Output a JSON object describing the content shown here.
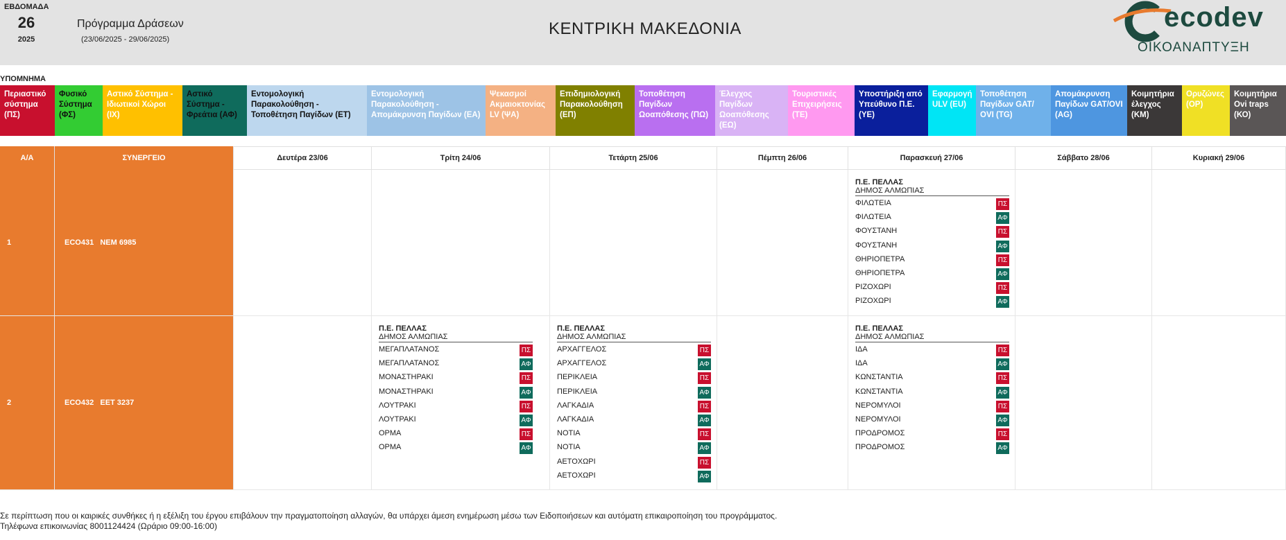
{
  "header": {
    "week_label": "ΕΒΔΟΜΑΔΑ",
    "week_number": "26",
    "year": "2025",
    "program_title": "Πρόγραμμα Δράσεων",
    "program_range": "(23/06/2025 - 29/06/2025)",
    "region": "ΚΕΝΤΡΙΚΗ ΜΑΚΕΔΟΝΙΑ",
    "logo_text": "ecodev",
    "logo_subtitle": "ΟΙΚΟΑΝΑΠΤΥΞΗ",
    "logo_color": "#1d4a3f",
    "logo_accent": "#e87b2e"
  },
  "legend": {
    "title": "ΥΠΟΜΝΗΜΑ",
    "items": [
      {
        "label": "Περιαστικό σύστημα (ΠΣ)",
        "bg": "#c8102e",
        "fg": "#ffffff"
      },
      {
        "label": "Φυσικό Σύστημα (ΦΣ)",
        "bg": "#33cc33",
        "fg": "#111111"
      },
      {
        "label": "Αστικό Σύστημα - Ιδιωτικοί Χώροι (ΙΧ)",
        "bg": "#ffc000",
        "fg": "#ffffff"
      },
      {
        "label": "Αστικό Σύστημα - Φρεάτια (ΑΦ)",
        "bg": "#0f6b5c",
        "fg": "#111111"
      },
      {
        "label": "Εντομολογική Παρακολούθηση - Τοποθέτηση Παγίδων (ΕΤ)",
        "bg": "#bdd7ee",
        "fg": "#111111"
      },
      {
        "label": "Εντομολογική Παρακολούθηση - Απομάκρυνση Παγίδων (ΕΑ)",
        "bg": "#9dc3e6",
        "fg": "#ffffff"
      },
      {
        "label": "Ψεκασμοί Ακμαιοκτονίας LV (ΨΑ)",
        "bg": "#f4b183",
        "fg": "#ffffff"
      },
      {
        "label": "Επιδημιολογική Παρακολούθηση (ΕΠ)",
        "bg": "#808000",
        "fg": "#ffffff"
      },
      {
        "label": "Τοποθέτηση Παγίδων Ωοαπόθεσης (ΠΩ)",
        "bg": "#b96ff0",
        "fg": "#ffffff"
      },
      {
        "label": "Έλεγχος Παγίδων Ωοαπόθεσης (ΕΩ)",
        "bg": "#d9b3f5",
        "fg": "#ffffff"
      },
      {
        "label": "Τουριστικές Επιχειρήσεις (ΤΕ)",
        "bg": "#ff99f0",
        "fg": "#ffffff"
      },
      {
        "label": "Υποστήριξη από Υπεύθυνο Π.Ε. (ΥΕ)",
        "bg": "#0a1f9c",
        "fg": "#ffffff"
      },
      {
        "label": "Εφαρμογή ULV (EU)",
        "bg": "#00e5f5",
        "fg": "#ffffff"
      },
      {
        "label": "Τοποθέτηση Παγίδων GAT/ OVI (TG)",
        "bg": "#6fb1ea",
        "fg": "#ffffff"
      },
      {
        "label": "Απομάκρυνση Παγίδων GAT/OVI (AG)",
        "bg": "#4e96e0",
        "fg": "#ffffff"
      },
      {
        "label": "Κοιμητήρια έλεγχος (ΚΜ)",
        "bg": "#3b3838",
        "fg": "#ffffff"
      },
      {
        "label": "Ορυζώνες (ΟΡ)",
        "bg": "#f0e025",
        "fg": "#ffffff"
      },
      {
        "label": "Κοιμητήρια Ovi traps (ΚΟ)",
        "bg": "#5a5656",
        "fg": "#ffffff"
      }
    ]
  },
  "table": {
    "col_aa": "Α/Α",
    "col_team": "ΣΥΝΕΡΓΕΙΟ",
    "days": [
      "Δευτέρα 23/06",
      "Τρίτη 24/06",
      "Τετάρτη 25/06",
      "Πέμπτη 26/06",
      "Παρασκευή 27/06",
      "Σάββατο 28/06",
      "Κυριακή 29/06"
    ],
    "rows": [
      {
        "aa": "1",
        "team": "ECO431   ΝΕΜ 6985",
        "cells": [
          null,
          null,
          null,
          null,
          {
            "unit": "Π.Ε. ΠΕΛΛΑΣ",
            "municipality": "ΔΗΜΟΣ ΑΛΜΩΠΙΑΣ",
            "items": [
              {
                "place": "ΦΙΛΩΤΕΙΑ",
                "code": "ΠΣ"
              },
              {
                "place": "ΦΙΛΩΤΕΙΑ",
                "code": "ΑΦ"
              },
              {
                "place": "ΦΟΥΣΤΑΝΗ",
                "code": "ΠΣ"
              },
              {
                "place": "ΦΟΥΣΤΑΝΗ",
                "code": "ΑΦ"
              },
              {
                "place": "ΘΗΡΙΟΠΕΤΡΑ",
                "code": "ΠΣ"
              },
              {
                "place": "ΘΗΡΙΟΠΕΤΡΑ",
                "code": "ΑΦ"
              },
              {
                "place": "ΡΙΖΟΧΩΡΙ",
                "code": "ΠΣ"
              },
              {
                "place": "ΡΙΖΟΧΩΡΙ",
                "code": "ΑΦ"
              }
            ]
          },
          null,
          null
        ]
      },
      {
        "aa": "2",
        "team": "ECO432   ΕΕΤ 3237",
        "cells": [
          null,
          {
            "unit": "Π.Ε. ΠΕΛΛΑΣ",
            "municipality": "ΔΗΜΟΣ ΑΛΜΩΠΙΑΣ",
            "items": [
              {
                "place": "ΜΕΓΑΠΛΑΤΑΝΟΣ",
                "code": "ΠΣ"
              },
              {
                "place": "ΜΕΓΑΠΛΑΤΑΝΟΣ",
                "code": "ΑΦ"
              },
              {
                "place": "ΜΟΝΑΣΤΗΡΑΚΙ",
                "code": "ΠΣ"
              },
              {
                "place": "ΜΟΝΑΣΤΗΡΑΚΙ",
                "code": "ΑΦ"
              },
              {
                "place": "ΛΟΥΤΡΑΚΙ",
                "code": "ΠΣ"
              },
              {
                "place": "ΛΟΥΤΡΑΚΙ",
                "code": "ΑΦ"
              },
              {
                "place": "ΟΡΜΑ",
                "code": "ΠΣ"
              },
              {
                "place": "ΟΡΜΑ",
                "code": "ΑΦ"
              }
            ]
          },
          {
            "unit": "Π.Ε. ΠΕΛΛΑΣ",
            "municipality": "ΔΗΜΟΣ ΑΛΜΩΠΙΑΣ",
            "items": [
              {
                "place": "ΑΡΧΑΓΓΕΛΟΣ",
                "code": "ΠΣ"
              },
              {
                "place": "ΑΡΧΑΓΓΕΛΟΣ",
                "code": "ΑΦ"
              },
              {
                "place": "ΠΕΡΙΚΛΕΙΑ",
                "code": "ΠΣ"
              },
              {
                "place": "ΠΕΡΙΚΛΕΙΑ",
                "code": "ΑΦ"
              },
              {
                "place": "ΛΑΓΚΑΔΙΑ",
                "code": "ΠΣ"
              },
              {
                "place": "ΛΑΓΚΑΔΙΑ",
                "code": "ΑΦ"
              },
              {
                "place": "ΝΟΤΙΑ",
                "code": "ΠΣ"
              },
              {
                "place": "ΝΟΤΙΑ",
                "code": "ΑΦ"
              },
              {
                "place": "ΑΕΤΟΧΩΡΙ",
                "code": "ΠΣ"
              },
              {
                "place": "ΑΕΤΟΧΩΡΙ",
                "code": "ΑΦ"
              }
            ]
          },
          null,
          {
            "unit": "Π.Ε. ΠΕΛΛΑΣ",
            "municipality": "ΔΗΜΟΣ ΑΛΜΩΠΙΑΣ",
            "items": [
              {
                "place": "ΙΔΑ",
                "code": "ΠΣ"
              },
              {
                "place": "ΙΔΑ",
                "code": "ΑΦ"
              },
              {
                "place": "ΚΩΝΣΤΑΝΤΙΑ",
                "code": "ΠΣ"
              },
              {
                "place": "ΚΩΝΣΤΑΝΤΙΑ",
                "code": "ΑΦ"
              },
              {
                "place": "ΝΕΡΟΜΥΛΟΙ",
                "code": "ΠΣ"
              },
              {
                "place": "ΝΕΡΟΜΥΛΟΙ",
                "code": "ΑΦ"
              },
              {
                "place": "ΠΡΟΔΡΟΜΟΣ",
                "code": "ΠΣ"
              },
              {
                "place": "ΠΡΟΔΡΟΜΟΣ",
                "code": "ΑΦ"
              }
            ]
          },
          null,
          null
        ]
      }
    ]
  },
  "footer": {
    "note": "Σε περίπτωση που οι καιρικές συνθήκες ή η εξέλιξη του έργου επιβάλουν την πραγματοποίηση αλλαγών, θα υπάρχει άμεση ενημέρωση μέσω των Ειδοποιήσεων και αυτόματη επικαιροποίηση του προγράμματος.",
    "phone": "Τηλέφωνα επικοινωνίας 8001124424 (Ωράριο 09:00-16:00)"
  }
}
